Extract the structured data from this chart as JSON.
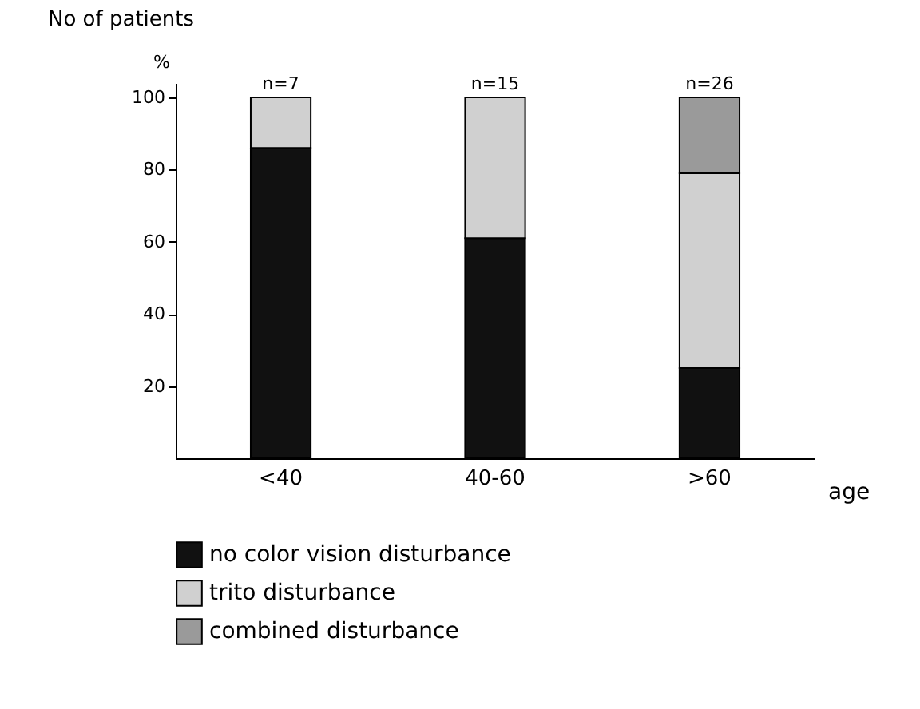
{
  "chart_data": {
    "type": "bar",
    "stacked": true,
    "title": "No of patients",
    "ylabel": "%",
    "xlabel": "age",
    "categories": [
      "<40",
      "40-60",
      ">60"
    ],
    "series": [
      {
        "name": "no color vision disturbance",
        "color": "#111111",
        "values": [
          86,
          61,
          25
        ]
      },
      {
        "name": "trito disturbance",
        "color": "#d0d0d0",
        "values": [
          14,
          39,
          54
        ]
      },
      {
        "name": "combined disturbance",
        "color": "#9a9a9a",
        "values": [
          null,
          null,
          21
        ]
      }
    ],
    "ylim": [
      0,
      104
    ],
    "yticks": [
      20,
      40,
      60,
      80,
      100
    ],
    "grid": false,
    "legend": "bottom",
    "annotations": [
      {
        "text": "n=7",
        "x": "<40",
        "y": 100
      },
      {
        "text": "n=15",
        "x": "40-60",
        "y": 100
      },
      {
        "text": "n=26",
        "x": ">60",
        "y": 100
      }
    ]
  }
}
